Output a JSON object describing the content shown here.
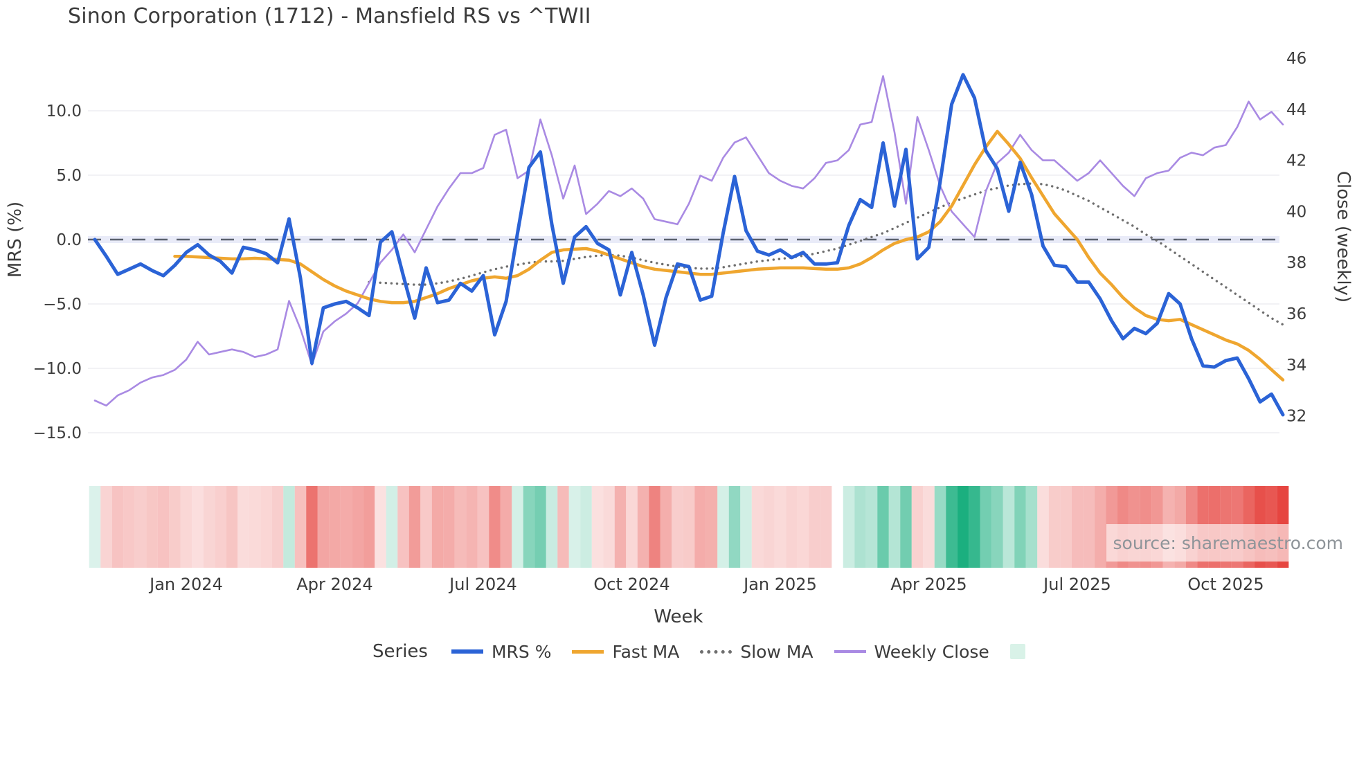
{
  "header": {
    "title": "Sinon Corporation (1712) - Mansfield RS vs ^TWII"
  },
  "legend": {
    "title": "Series",
    "items": [
      {
        "label": "MRS %",
        "swatch": "line",
        "color": "#2b63d6",
        "thickness": 6
      },
      {
        "label": "Fast MA",
        "swatch": "line",
        "color": "#efa62f",
        "thickness": 5
      },
      {
        "label": "Slow MA",
        "swatch": "dotted",
        "color": "#6e6e6e",
        "thickness": 5
      },
      {
        "label": "Weekly Close",
        "swatch": "line",
        "color": "#a98ae3",
        "thickness": 4
      },
      {
        "label": "",
        "swatch": "square",
        "color": "#d9f2e8",
        "thickness": 0
      }
    ]
  },
  "chart_data": {
    "type": "line",
    "title": "Sinon Corporation (1712) - Mansfield RS vs ^TWII",
    "xlabel": "Week",
    "ylabel_left": "MRS (%)",
    "ylabel_right": "Close (weekly)",
    "source": "source: sharemaestro.com",
    "x_ticks": [
      {
        "label": "Jan 2024",
        "week": 8
      },
      {
        "label": "Apr 2024",
        "week": 21
      },
      {
        "label": "Jul 2024",
        "week": 34
      },
      {
        "label": "Oct 2024",
        "week": 47
      },
      {
        "label": "Jan 2025",
        "week": 60
      },
      {
        "label": "Apr 2025",
        "week": 73
      },
      {
        "label": "Jul 2025",
        "week": 86
      },
      {
        "label": "Oct 2025",
        "week": 99
      }
    ],
    "left_axis": {
      "ticks": [
        "10.0",
        "5.0",
        "0.0",
        "−5.0",
        "−10.0",
        "−15.0"
      ],
      "tick_values": [
        10,
        5,
        0,
        -5,
        -10,
        -15
      ]
    },
    "right_axis": {
      "ticks": [
        "46",
        "44",
        "42",
        "40",
        "38",
        "36",
        "34",
        "32"
      ],
      "tick_values": [
        46,
        44,
        42,
        40,
        38,
        36,
        34,
        32
      ]
    },
    "zero_line_value": 0,
    "grid": true,
    "legend_position": "bottom",
    "series": [
      {
        "name": "MRS %",
        "axis": "left",
        "style": "solid",
        "color": "#2b63d6",
        "values": [
          0.0,
          -1.3,
          -2.7,
          -2.3,
          -1.9,
          -2.4,
          -2.8,
          -2.0,
          -1.0,
          -0.4,
          -1.2,
          -1.7,
          -2.6,
          -0.6,
          -0.8,
          -1.1,
          -1.8,
          1.6,
          -3.0,
          -9.6,
          -5.3,
          -5.0,
          -4.8,
          -5.3,
          -5.9,
          -0.2,
          0.6,
          -2.8,
          -6.1,
          -2.2,
          -4.9,
          -4.7,
          -3.4,
          -4.0,
          -2.8,
          -7.4,
          -4.8,
          0.5,
          5.6,
          6.8,
          1.2,
          -3.4,
          0.2,
          1.0,
          -0.3,
          -0.8,
          -4.3,
          -1.0,
          -4.3,
          -8.2,
          -4.5,
          -1.9,
          -2.1,
          -4.7,
          -4.4,
          0.5,
          4.9,
          0.7,
          -0.9,
          -1.2,
          -0.8,
          -1.4,
          -1.0,
          -1.9,
          -1.9,
          -1.8,
          1.1,
          3.1,
          2.5,
          7.5,
          2.6,
          7.0,
          -1.5,
          -0.6,
          4.5,
          10.5,
          12.8,
          11.0,
          6.9,
          5.5,
          2.2,
          6.0,
          3.5,
          -0.5,
          -2.0,
          -2.1,
          -3.3,
          -3.3,
          -4.6,
          -6.3,
          -7.7,
          -6.9,
          -7.3,
          -6.5,
          -4.2,
          -5.0,
          -7.7,
          -9.8,
          -9.9,
          -9.4,
          -9.2,
          -10.8,
          -12.6,
          -12.0,
          -13.6
        ]
      },
      {
        "name": "Fast MA",
        "axis": "left",
        "style": "solid",
        "color": "#efa62f",
        "values": [
          null,
          null,
          null,
          null,
          null,
          null,
          null,
          -1.3,
          -1.3,
          -1.35,
          -1.4,
          -1.45,
          -1.5,
          -1.5,
          -1.45,
          -1.5,
          -1.55,
          -1.6,
          -1.9,
          -2.5,
          -3.1,
          -3.6,
          -4.0,
          -4.3,
          -4.6,
          -4.8,
          -4.9,
          -4.9,
          -4.8,
          -4.5,
          -4.2,
          -3.8,
          -3.5,
          -3.2,
          -3.0,
          -2.9,
          -3.0,
          -2.8,
          -2.3,
          -1.6,
          -1.0,
          -0.8,
          -0.75,
          -0.7,
          -0.9,
          -1.2,
          -1.5,
          -1.8,
          -2.1,
          -2.3,
          -2.4,
          -2.5,
          -2.6,
          -2.7,
          -2.7,
          -2.6,
          -2.5,
          -2.4,
          -2.3,
          -2.25,
          -2.2,
          -2.2,
          -2.2,
          -2.25,
          -2.3,
          -2.3,
          -2.2,
          -1.9,
          -1.4,
          -0.8,
          -0.3,
          0.0,
          0.2,
          0.6,
          1.4,
          2.6,
          4.2,
          5.8,
          7.2,
          8.4,
          7.4,
          6.3,
          4.8,
          3.4,
          2.0,
          1.0,
          0.0,
          -1.4,
          -2.6,
          -3.5,
          -4.5,
          -5.3,
          -5.9,
          -6.2,
          -6.3,
          -6.2,
          -6.6,
          -7.0,
          -7.4,
          -7.8,
          -8.1,
          -8.6,
          -9.3,
          -10.1,
          -10.9
        ]
      },
      {
        "name": "Slow MA",
        "axis": "left",
        "style": "dotted",
        "color": "#6e6e6e",
        "values": [
          null,
          null,
          null,
          null,
          null,
          null,
          null,
          null,
          null,
          null,
          null,
          null,
          null,
          null,
          null,
          null,
          null,
          null,
          null,
          null,
          null,
          null,
          null,
          null,
          -3.3,
          -3.35,
          -3.4,
          -3.45,
          -3.5,
          -3.5,
          -3.4,
          -3.25,
          -3.05,
          -2.8,
          -2.55,
          -2.3,
          -2.1,
          -1.95,
          -1.8,
          -1.7,
          -1.7,
          -1.65,
          -1.5,
          -1.35,
          -1.25,
          -1.2,
          -1.25,
          -1.4,
          -1.6,
          -1.8,
          -1.95,
          -2.1,
          -2.2,
          -2.25,
          -2.25,
          -2.15,
          -2.0,
          -1.85,
          -1.7,
          -1.6,
          -1.5,
          -1.4,
          -1.25,
          -1.1,
          -0.9,
          -0.7,
          -0.4,
          -0.1,
          0.2,
          0.5,
          0.9,
          1.3,
          1.7,
          2.1,
          2.5,
          2.9,
          3.2,
          3.5,
          3.8,
          4.0,
          4.2,
          4.3,
          4.35,
          4.3,
          4.1,
          3.8,
          3.4,
          3.0,
          2.5,
          2.0,
          1.5,
          1.0,
          0.4,
          -0.1,
          -0.7,
          -1.3,
          -1.9,
          -2.5,
          -3.1,
          -3.7,
          -4.3,
          -4.9,
          -5.5,
          -6.1,
          -6.6
        ]
      },
      {
        "name": "Weekly Close",
        "axis": "right",
        "style": "solid",
        "color": "#a98ae3",
        "values": [
          32.6,
          32.4,
          32.8,
          33.0,
          33.3,
          33.5,
          33.6,
          33.8,
          34.2,
          34.9,
          34.4,
          34.5,
          34.6,
          34.5,
          34.3,
          34.4,
          34.6,
          36.5,
          35.4,
          34.0,
          35.3,
          35.7,
          36.0,
          36.4,
          37.2,
          38.0,
          38.5,
          39.1,
          38.4,
          39.3,
          40.2,
          40.9,
          41.5,
          41.5,
          41.7,
          43.0,
          43.2,
          41.3,
          41.6,
          43.6,
          42.2,
          40.5,
          41.8,
          39.9,
          40.3,
          40.8,
          40.6,
          40.9,
          40.5,
          39.7,
          39.6,
          39.5,
          40.3,
          41.4,
          41.2,
          42.1,
          42.7,
          42.9,
          42.2,
          41.5,
          41.2,
          41.0,
          40.9,
          41.3,
          41.9,
          42.0,
          42.4,
          43.4,
          43.5,
          45.3,
          43.1,
          40.3,
          43.7,
          42.4,
          41.0,
          40.0,
          39.5,
          39.0,
          40.8,
          41.9,
          42.3,
          43.0,
          42.4,
          42.0,
          42.0,
          41.6,
          41.2,
          41.5,
          42.0,
          41.5,
          41.0,
          40.6,
          41.3,
          41.5,
          41.6,
          42.1,
          42.3,
          42.2,
          42.5,
          42.6,
          43.3,
          44.3,
          43.6,
          43.9,
          43.4
        ]
      }
    ],
    "heatmap": {
      "derived_from": "MRS %",
      "positive_color": "#10ab79",
      "negative_color": "#e64540",
      "max_abs": 13.5,
      "null_weeks": [
        65
      ],
      "legend_swatch_color": "#d9f2e8"
    }
  }
}
